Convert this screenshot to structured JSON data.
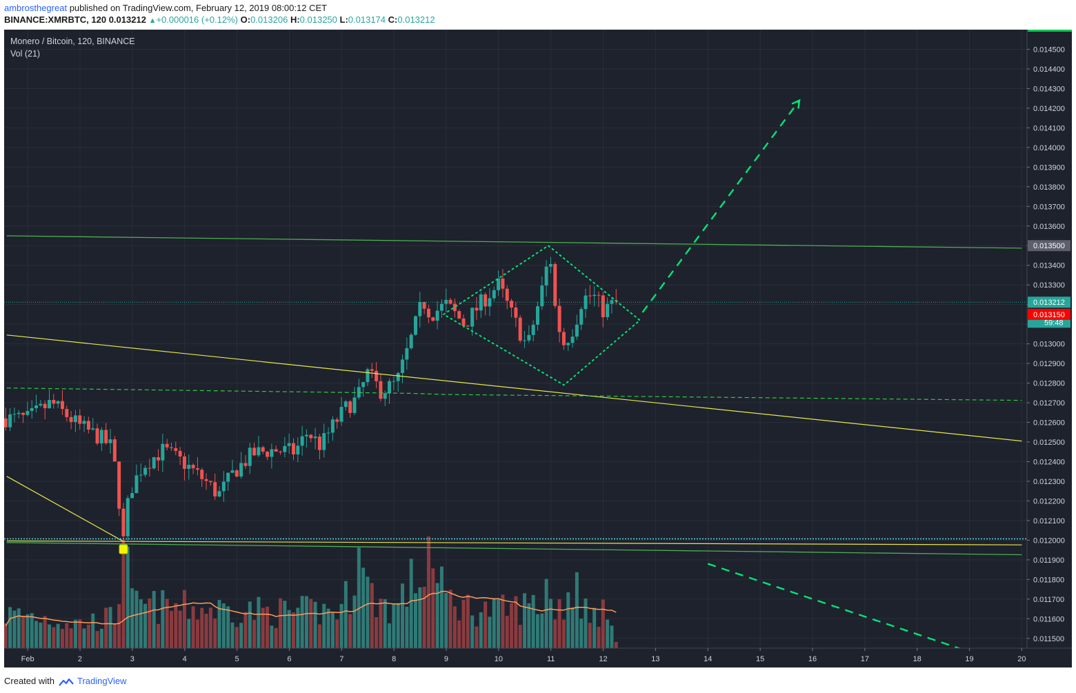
{
  "header": {
    "author": "ambrosthegreat",
    "published_text": "published on TradingView.com, February 12, 2019 08:00:12 CET",
    "symbol_line": "BINANCE:XMRBTC, 120",
    "last": "0.013212",
    "change": "+0.000016 (+0.12%)",
    "o_label": "O:",
    "o_value": "0.013206",
    "h_label": "H:",
    "h_value": "0.013250",
    "l_label": "L:",
    "l_value": "0.013174",
    "c_label": "C:",
    "c_value": "0.013212"
  },
  "legend": {
    "series": "Monero / Bitcoin, 120, BINANCE",
    "volume": "Vol (21)"
  },
  "footer": {
    "created_with": "Created with",
    "brand": "TradingView"
  },
  "colors": {
    "background": "#1e222d",
    "up": "#26a69a",
    "down": "#ef5350",
    "up_volume": "#2f7a76",
    "down_volume": "#8a3b3f",
    "grid": "#2a2e39",
    "green_line": "#4caf50",
    "dotted_green": "#00e676",
    "dashed_arrow": "#00e676",
    "yellow_line": "#e8e84a",
    "vol_ma": "#ff9c5b",
    "cyan_dotted": "#4dd0e1",
    "price_badge_current": "#26a69a",
    "price_badge_low": "#ff0000",
    "price_badge_grey": "#5d606b"
  },
  "chart_data": {
    "type": "candlestick",
    "symbol": "XMRBTC",
    "interval": "120",
    "y_axis_labels": [
      "0.014500",
      "0.014400",
      "0.014300",
      "0.014200",
      "0.014100",
      "0.014000",
      "0.013900",
      "0.013800",
      "0.013700",
      "0.013600",
      "0.013500",
      "0.013400",
      "0.013300",
      "0.013200",
      "0.013100",
      "0.013000",
      "0.012900",
      "0.012800",
      "0.012700",
      "0.012600",
      "0.012500",
      "0.012400",
      "0.012300",
      "0.012200",
      "0.012100",
      "0.012000",
      "0.011900",
      "0.011800",
      "0.011700",
      "0.011600",
      "0.011500"
    ],
    "ylim": [
      0.01145,
      0.0146
    ],
    "x_axis_labels": [
      "Feb",
      "2",
      "3",
      "4",
      "5",
      "6",
      "7",
      "8",
      "9",
      "10",
      "11",
      "12",
      "13",
      "14",
      "15",
      "16",
      "17",
      "18",
      "19",
      "20"
    ],
    "x_axis_days": [
      1,
      2,
      3,
      4,
      5,
      6,
      7,
      8,
      9,
      10,
      11,
      12,
      13,
      14,
      15,
      16,
      17,
      18,
      19,
      20
    ],
    "xlim": [
      0.55,
      20.1
    ],
    "price_badges": [
      {
        "label": "0.013500",
        "price": 0.0135,
        "kind": "grey"
      },
      {
        "label": "0.013212",
        "price": 0.013212,
        "kind": "current"
      },
      {
        "label": "59:48",
        "price": 0.01311,
        "kind": "countdown"
      },
      {
        "label": "0.013150",
        "price": 0.01315,
        "kind": "low"
      }
    ],
    "anchors": [
      [
        1.0,
        0.01262
      ],
      [
        1.45,
        0.0127
      ],
      [
        2.0,
        0.01258
      ],
      [
        2.4,
        0.01252
      ],
      [
        2.62,
        0.01247
      ],
      [
        2.83,
        0.01202
      ],
      [
        2.95,
        0.01225
      ],
      [
        3.2,
        0.01238
      ],
      [
        3.6,
        0.01246
      ],
      [
        4.0,
        0.01239
      ],
      [
        4.4,
        0.0123
      ],
      [
        4.65,
        0.01223
      ],
      [
        4.95,
        0.01235
      ],
      [
        5.3,
        0.01244
      ],
      [
        5.7,
        0.01246
      ],
      [
        6.1,
        0.01245
      ],
      [
        6.35,
        0.01255
      ],
      [
        6.6,
        0.01248
      ],
      [
        6.85,
        0.01259
      ],
      [
        7.1,
        0.01268
      ],
      [
        7.3,
        0.01272
      ],
      [
        7.5,
        0.01285
      ],
      [
        7.75,
        0.01276
      ],
      [
        8.05,
        0.0128
      ],
      [
        8.3,
        0.013
      ],
      [
        8.55,
        0.01322
      ],
      [
        8.7,
        0.01315
      ],
      [
        9.0,
        0.0132
      ],
      [
        9.35,
        0.0131
      ],
      [
        9.7,
        0.01322
      ],
      [
        10.0,
        0.0133
      ],
      [
        10.25,
        0.01315
      ],
      [
        10.55,
        0.01298
      ],
      [
        10.85,
        0.0133
      ],
      [
        10.98,
        0.01347
      ],
      [
        11.1,
        0.01313
      ],
      [
        11.25,
        0.013
      ],
      [
        11.45,
        0.01309
      ],
      [
        11.6,
        0.01323
      ],
      [
        11.8,
        0.01325
      ],
      [
        12.0,
        0.01317
      ],
      [
        12.25,
        0.013212
      ]
    ],
    "volume_profile": [
      [
        1.0,
        0.3
      ],
      [
        2.0,
        0.22
      ],
      [
        2.7,
        0.28
      ],
      [
        2.83,
        0.95
      ],
      [
        3.0,
        0.38
      ],
      [
        4.0,
        0.36
      ],
      [
        5.0,
        0.34
      ],
      [
        6.0,
        0.32
      ],
      [
        7.0,
        0.34
      ],
      [
        7.3,
        0.7
      ],
      [
        7.6,
        0.45
      ],
      [
        8.0,
        0.35
      ],
      [
        8.6,
        0.75
      ],
      [
        9.0,
        0.45
      ],
      [
        9.5,
        0.35
      ],
      [
        10.0,
        0.33
      ],
      [
        10.8,
        0.4
      ],
      [
        11.4,
        0.38
      ],
      [
        12.0,
        0.32
      ],
      [
        12.3,
        0.05
      ]
    ],
    "spike_volumes": [
      [
        2.83,
        0.97
      ],
      [
        7.33,
        0.9
      ],
      [
        7.45,
        0.72
      ],
      [
        8.63,
        1.0
      ],
      [
        8.55,
        0.55
      ],
      [
        10.95,
        0.62
      ],
      [
        11.48,
        0.68
      ],
      [
        11.3,
        0.5
      ]
    ],
    "annotations": {
      "upper_green_line": [
        [
          0.6,
          0.01355
        ],
        [
          20.0,
          0.013487
        ]
      ],
      "lower_green_line": [
        [
          0.6,
          0.011988
        ],
        [
          20.0,
          0.011926
        ]
      ],
      "yellow_trend_upper": [
        [
          0.6,
          0.013045
        ],
        [
          20.0,
          0.012505
        ]
      ],
      "yellow_line_low": [
        [
          0.6,
          0.011996
        ],
        [
          20.0,
          0.011976
        ]
      ],
      "yellow_trend_left": [
        [
          0.6,
          0.012325
        ],
        [
          2.82,
          0.011995
        ]
      ],
      "dashed_support": [
        [
          0.6,
          0.012775
        ],
        [
          8.3,
          0.012748
        ],
        [
          9.0,
          0.012742
        ],
        [
          20.0,
          0.012712
        ]
      ],
      "cyan_dotted_level": 0.012007,
      "current_dotted_level": 0.013212,
      "diamond": [
        [
          8.95,
          0.01315
        ],
        [
          10.95,
          0.0135
        ],
        [
          12.7,
          0.01312
        ],
        [
          11.25,
          0.01279
        ]
      ],
      "arrow_up": [
        [
          12.75,
          0.01316
        ],
        [
          15.75,
          0.01424
        ]
      ],
      "arrow_down": [
        [
          14.0,
          0.01188
        ],
        [
          18.85,
          0.011445
        ]
      ],
      "marker": [
        2.83,
        0.011952
      ]
    }
  }
}
